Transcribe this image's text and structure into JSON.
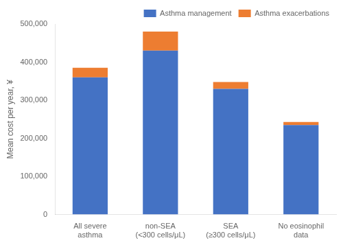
{
  "chart_data": {
    "type": "bar",
    "stacked": true,
    "categories": [
      "All severe\nasthma",
      "non-SEA\n(<300 cells/μL)",
      "SEA\n(≥300 cells/μL)",
      "No eosinophil\ndata"
    ],
    "series": [
      {
        "name": "Asthma management",
        "color": "#4472C4",
        "values": [
          360000,
          430000,
          330000,
          235000
        ]
      },
      {
        "name": "Asthma exacerbations",
        "color": "#ED7D31",
        "values": [
          25000,
          50000,
          18000,
          8000
        ]
      }
    ],
    "ylabel": "Mean cost per year, ¥",
    "ylim": [
      0,
      500000
    ],
    "yticks": [
      0,
      {
        "value": 100000,
        "label": "100,000"
      },
      {
        "value": 200000,
        "label": "200,000"
      },
      {
        "value": 300000,
        "label": "300,000"
      },
      {
        "value": 400000,
        "label": "400,000"
      },
      {
        "value": 500000,
        "label": "500,000"
      }
    ],
    "legend": "upper right",
    "grid": false
  }
}
